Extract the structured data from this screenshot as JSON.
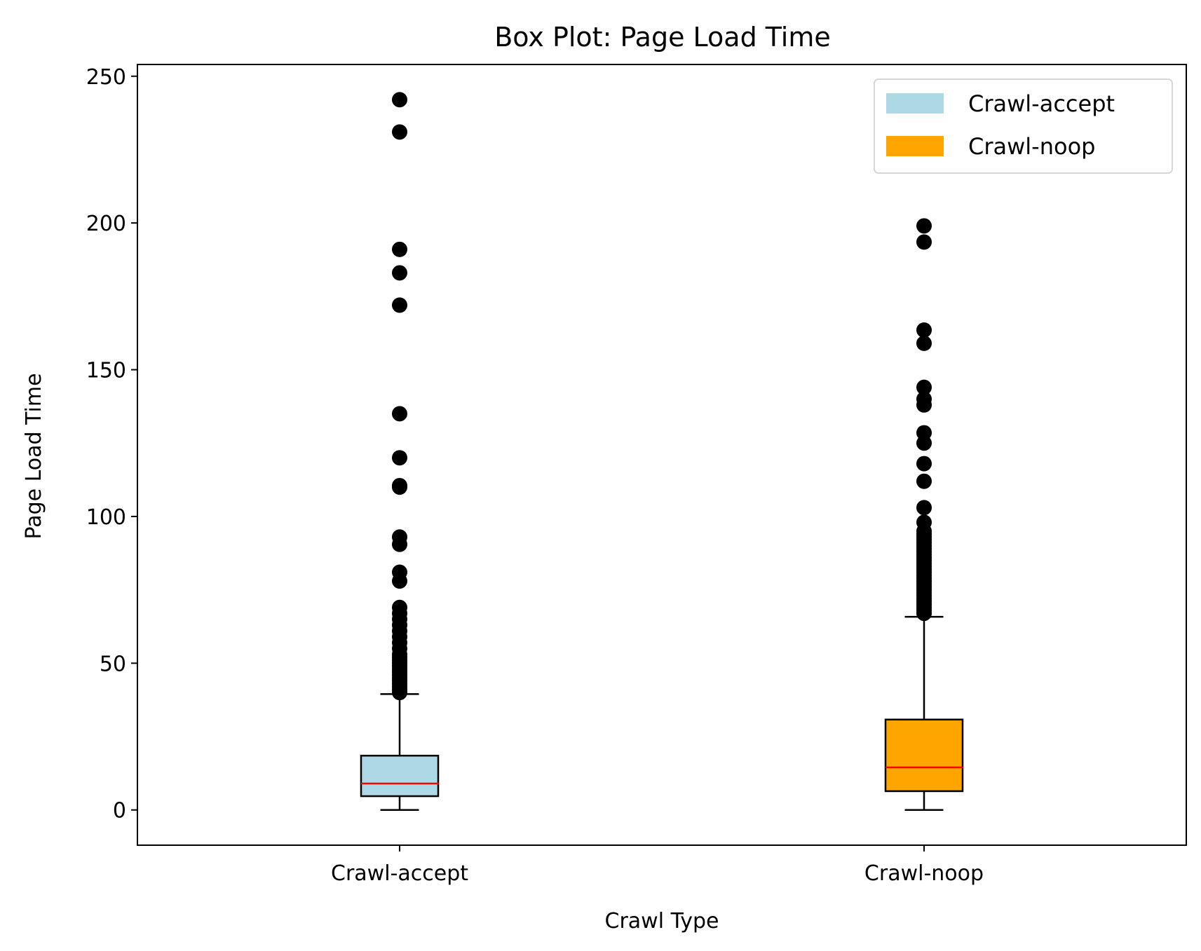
{
  "chart_data": {
    "type": "box",
    "title": "Box Plot: Page Load Time",
    "xlabel": "Crawl Type",
    "ylabel": "Page Load Time",
    "categories": [
      "Crawl-accept",
      "Crawl-noop"
    ],
    "ylim": [
      -12,
      254
    ],
    "yticks": [
      0,
      50,
      100,
      150,
      200,
      250
    ],
    "grid": false,
    "legend": {
      "position": "top-right",
      "entries": [
        {
          "label": "Crawl-accept",
          "color": "#add8e6"
        },
        {
          "label": "Crawl-noop",
          "color": "#ffa500"
        }
      ]
    },
    "series": [
      {
        "name": "Crawl-accept",
        "color": "#add8e6",
        "whisker_low": 0,
        "q1": 4.7,
        "median": 9,
        "q3": 18.5,
        "whisker_high": 39.5,
        "outliers": [
          40,
          41,
          42,
          43,
          44,
          45,
          46,
          47,
          48,
          49,
          50,
          51,
          52,
          53,
          55,
          57,
          59,
          61,
          63,
          65,
          67,
          69,
          78,
          81,
          90.5,
          93,
          110,
          110.5,
          120,
          135,
          172,
          183,
          191,
          231,
          242
        ]
      },
      {
        "name": "Crawl-noop",
        "color": "#ffa500",
        "whisker_low": 0,
        "q1": 6.4,
        "median": 14.5,
        "q3": 30.8,
        "whisker_high": 65.8,
        "outliers": [
          67,
          68,
          69,
          70,
          71,
          72,
          73,
          74,
          75,
          76,
          77,
          78,
          79,
          80,
          81,
          82,
          83,
          84,
          85,
          86,
          87,
          88,
          89,
          90,
          91,
          92,
          93,
          94,
          95,
          98,
          103,
          112,
          118,
          125,
          128.5,
          138,
          140,
          144,
          159,
          163.5,
          193.5,
          199
        ]
      }
    ],
    "median_color": "#ff0000"
  }
}
